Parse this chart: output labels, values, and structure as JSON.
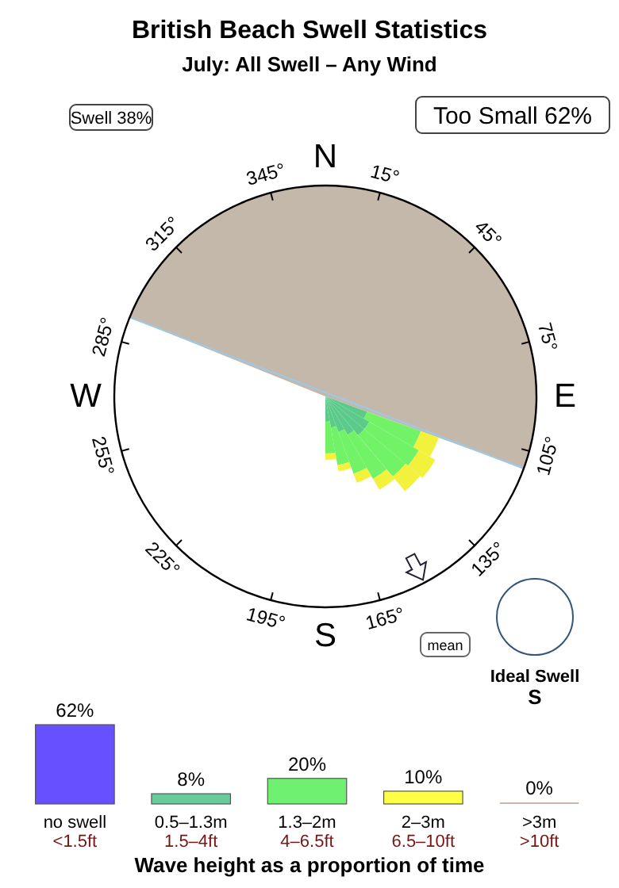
{
  "chart_data": [
    {
      "type": "other",
      "title": "British Beach Swell Statistics",
      "subtitle": "July: All Swell – Any Wind",
      "annotations": [
        "Swell 38%",
        "Too Small 62%",
        "N",
        "15°",
        "45°",
        "75°",
        "E",
        "105°",
        "135°",
        "165°",
        "S",
        "195°",
        "225°",
        "255°",
        "W",
        "285°",
        "315°",
        "345°",
        "mean",
        "Ideal Swell",
        "S"
      ]
    },
    {
      "type": "bar",
      "xlabel": "Wave height as a proportion of time",
      "categories": [
        "no swell\n<1.5ft",
        "0.5–1.3m\n1.5–4ft",
        "1.3–2m\n4–6.5ft",
        "2–3m\n6.5–10ft",
        ">3m\n>10ft"
      ],
      "values": [
        62,
        8,
        20,
        10,
        0
      ],
      "colors": [
        "#6650ff",
        "#66cc99",
        "#70f070",
        "#ffff44",
        "#c8b8b0"
      ],
      "value_labels": [
        "62%",
        "8%",
        "20%",
        "10%",
        "0%"
      ]
    }
  ]
}
